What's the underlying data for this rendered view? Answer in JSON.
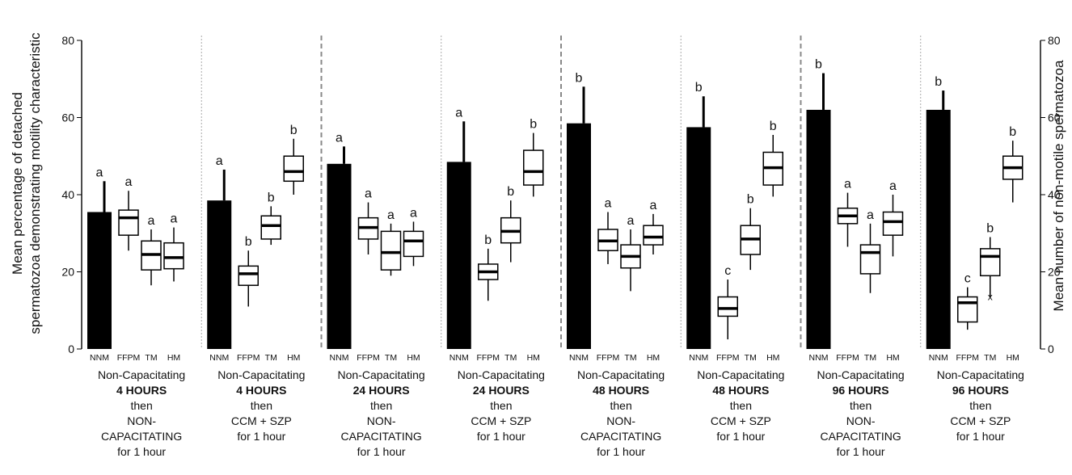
{
  "chart_data": {
    "type": "bar",
    "ylabel_left": "Mean percentage of detached spermatozoa demonstrating motility characteristic",
    "ylabel_right": "Mean number of non-motile spermatozoa",
    "ylim": [
      0,
      80
    ],
    "yticks": [
      0,
      20,
      40,
      60,
      80
    ],
    "right_yticks": [
      0,
      20,
      40,
      60,
      80
    ],
    "grid": false,
    "categories": [
      "NNM",
      "FFPM",
      "TM",
      "HM"
    ],
    "panels": [
      {
        "label_lines": [
          "Non-Capacitating",
          "4 HOURS",
          "then",
          "NON-",
          "CAPACITATING",
          "for 1 hour"
        ],
        "bold_line": 1,
        "nnm": {
          "value": 35.5,
          "err": 43.5,
          "letter": "a"
        },
        "boxes": [
          {
            "cat": "FFPM",
            "min": 25.5,
            "q1": 29.5,
            "median": 34,
            "q3": 36,
            "max": 41,
            "letter": "a"
          },
          {
            "cat": "TM",
            "min": 16.5,
            "q1": 20.5,
            "median": 24.5,
            "q3": 28,
            "max": 31,
            "letter": "a"
          },
          {
            "cat": "HM",
            "min": 17.5,
            "q1": 20.8,
            "median": 23.7,
            "q3": 27.5,
            "max": 31.5,
            "letter": "a"
          }
        ]
      },
      {
        "label_lines": [
          "Non-Capacitating",
          "4 HOURS",
          "then",
          "CCM + SZP",
          "for 1 hour"
        ],
        "bold_line": 1,
        "nnm": {
          "value": 38.5,
          "err": 46.5,
          "letter": "a"
        },
        "boxes": [
          {
            "cat": "FFPM",
            "min": 11,
            "q1": 16.5,
            "median": 19.5,
            "q3": 21.5,
            "max": 25.5,
            "letter": "b"
          },
          {
            "cat": "TM",
            "min": 27,
            "q1": 28.5,
            "median": 32,
            "q3": 34.5,
            "max": 37,
            "letter": "b"
          },
          {
            "cat": "HM",
            "min": 40,
            "q1": 43.5,
            "median": 46,
            "q3": 50,
            "max": 54.5,
            "letter": "b"
          }
        ]
      },
      {
        "label_lines": [
          "Non-Capacitating",
          "24 HOURS",
          "then",
          "NON-",
          "CAPACITATING",
          "for 1 hour"
        ],
        "bold_line": 1,
        "nnm": {
          "value": 48,
          "err": 52.5,
          "letter": "a"
        },
        "boxes": [
          {
            "cat": "FFPM",
            "min": 24.5,
            "q1": 28.5,
            "median": 31.5,
            "q3": 34,
            "max": 38,
            "letter": "a"
          },
          {
            "cat": "TM",
            "min": 19,
            "q1": 20.5,
            "median": 25,
            "q3": 30.5,
            "max": 32.5,
            "letter": "a"
          },
          {
            "cat": "HM",
            "min": 21.5,
            "q1": 24,
            "median": 28,
            "q3": 30.5,
            "max": 33,
            "letter": "a"
          }
        ]
      },
      {
        "label_lines": [
          "Non-Capacitating",
          "24 HOURS",
          "then",
          "CCM + SZP",
          "for 1 hour"
        ],
        "bold_line": 1,
        "nnm": {
          "value": 48.5,
          "err": 59,
          "letter": "a"
        },
        "boxes": [
          {
            "cat": "FFPM",
            "min": 12.5,
            "q1": 18,
            "median": 20,
            "q3": 22,
            "max": 26,
            "letter": "b"
          },
          {
            "cat": "TM",
            "min": 22.5,
            "q1": 27.5,
            "median": 30.5,
            "q3": 34,
            "max": 38.5,
            "letter": "b"
          },
          {
            "cat": "HM",
            "min": 39.5,
            "q1": 42.5,
            "median": 46,
            "q3": 51.5,
            "max": 56,
            "letter": "b"
          }
        ]
      },
      {
        "label_lines": [
          "Non-Capacitating",
          "48 HOURS",
          "then",
          "NON-",
          "CAPACITATING",
          "for 1 hour"
        ],
        "bold_line": 1,
        "nnm": {
          "value": 58.5,
          "err": 68,
          "letter": "b"
        },
        "boxes": [
          {
            "cat": "FFPM",
            "min": 22,
            "q1": 25.5,
            "median": 28,
            "q3": 31,
            "max": 35.5,
            "letter": "a"
          },
          {
            "cat": "TM",
            "min": 15,
            "q1": 21,
            "median": 24,
            "q3": 27,
            "max": 31,
            "letter": "a"
          },
          {
            "cat": "HM",
            "min": 24.5,
            "q1": 27,
            "median": 29,
            "q3": 32,
            "max": 35,
            "letter": "a"
          }
        ]
      },
      {
        "label_lines": [
          "Non-Capacitating",
          "48 HOURS",
          "then",
          "CCM + SZP",
          "for 1 hour"
        ],
        "bold_line": 1,
        "nnm": {
          "value": 57.5,
          "err": 65.5,
          "letter": "b"
        },
        "boxes": [
          {
            "cat": "FFPM",
            "min": 2.5,
            "q1": 8.5,
            "median": 10.5,
            "q3": 13.5,
            "max": 18,
            "letter": "c"
          },
          {
            "cat": "TM",
            "min": 20.5,
            "q1": 24.5,
            "median": 28.5,
            "q3": 32,
            "max": 36.5,
            "letter": "b"
          },
          {
            "cat": "HM",
            "min": 39.5,
            "q1": 42.5,
            "median": 47,
            "q3": 51,
            "max": 55.5,
            "letter": "b"
          }
        ]
      },
      {
        "label_lines": [
          "Non-Capacitating",
          "96 HOURS",
          "then",
          "NON-",
          "CAPACITATING",
          "for 1 hour"
        ],
        "bold_line": 1,
        "nnm": {
          "value": 62,
          "err": 71.5,
          "letter": "b"
        },
        "boxes": [
          {
            "cat": "FFPM",
            "min": 26.5,
            "q1": 32.5,
            "median": 34.5,
            "q3": 36.5,
            "max": 40.5,
            "letter": "a"
          },
          {
            "cat": "TM",
            "min": 14.5,
            "q1": 19.5,
            "median": 25,
            "q3": 27,
            "max": 32.5,
            "letter": "a"
          },
          {
            "cat": "HM",
            "min": 24,
            "q1": 29.5,
            "median": 33,
            "q3": 35.5,
            "max": 40,
            "letter": "a"
          }
        ]
      },
      {
        "label_lines": [
          "Non-Capacitating",
          "96 HOURS",
          "then",
          "CCM + SZP",
          "for 1 hour"
        ],
        "bold_line": 1,
        "nnm": {
          "value": 62,
          "err": 67,
          "letter": "b"
        },
        "boxes": [
          {
            "cat": "FFPM",
            "min": 5,
            "q1": 7,
            "median": 12,
            "q3": 13.5,
            "max": 16,
            "letter": "c"
          },
          {
            "cat": "TM",
            "min": 13.5,
            "q1": 19,
            "median": 24,
            "q3": 26,
            "max": 29,
            "letter": "b",
            "outlier": 13.5,
            "outlier_mark": "x"
          },
          {
            "cat": "HM",
            "min": 38,
            "q1": 44,
            "median": 47,
            "q3": 50,
            "max": 54,
            "letter": "b"
          }
        ]
      }
    ],
    "separators": [
      "dotted",
      "dashed",
      "dotted",
      "dashed",
      "dotted",
      "dashed",
      "dotted"
    ]
  }
}
